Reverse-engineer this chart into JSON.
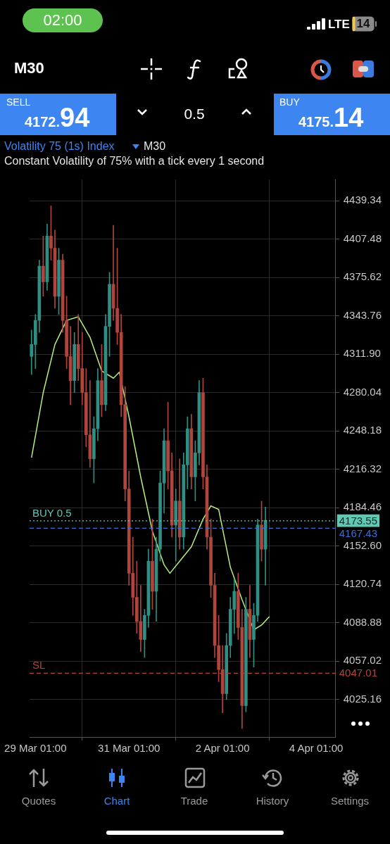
{
  "chart_data": {
    "type": "candlestick",
    "title": "Volatility 75 (1s) Index",
    "subtitle": "Constant Volatility of 75% with a tick every 1 second",
    "annotations": [
      "02:00",
      "LTE",
      "14",
      "M30",
      "SELL",
      "4172.94",
      "0.5",
      "BUY",
      "4175.14",
      "M30",
      "Quotes",
      "Chart",
      "Trade",
      "History",
      "Settings",
      "4173.55",
      "4167.43",
      "4047.01"
    ],
    "x": [
      "--03-28T23:00",
      "--03-29T01:00",
      "--03-29T03:00",
      "--03-29T05:00",
      "--03-29T07:00",
      "--03-29T09:00",
      "--03-29T11:00",
      "--03-29T13:00",
      "--03-29T15:00",
      "--03-29T17:00",
      "--03-29T19:00",
      "--03-29T21:00",
      "--03-29T23:00",
      "--03-30T01:00",
      "--03-30T03:00",
      "--03-30T05:00",
      "--03-30T07:00",
      "--03-30T09:00",
      "--03-30T11:00",
      "--03-30T13:00",
      "--03-30T15:00",
      "--03-30T17:00",
      "--03-30T19:00",
      "--03-30T21:00",
      "--03-30T23:00",
      "--03-31T01:00",
      "--03-31T03:00",
      "--03-31T05:00",
      "--03-31T07:00",
      "--03-31T09:00",
      "--03-31T11:00",
      "--03-31T13:00",
      "--03-31T15:00",
      "--03-31T17:00",
      "--03-31T19:00",
      "--03-31T21:00",
      "--03-31T23:00",
      "--04-01T01:00",
      "--04-01T03:00",
      "--04-01T05:00",
      "--04-01T07:00",
      "--04-01T09:00",
      "--04-01T11:00",
      "--04-01T13:00",
      "--04-01T15:00",
      "--04-01T17:00",
      "--04-01T19:00",
      "--04-01T21:00",
      "--04-01T23:00",
      "--04-02T01:00",
      "--04-02T03:00",
      "--04-02T05:00",
      "--04-02T07:00",
      "--04-02T09:00",
      "--04-02T11:00",
      "--04-02T13:00",
      "--04-02T15:00",
      "--04-02T17:00",
      "--04-02T19:00",
      "--04-02T21:00",
      "--04-02T23:00"
    ],
    "ohlc": [
      [
        4310,
        4332,
        4295,
        4320
      ],
      [
        4320,
        4345,
        4300,
        4340
      ],
      [
        4340,
        4390,
        4330,
        4385
      ],
      [
        4385,
        4410,
        4360,
        4372
      ],
      [
        4372,
        4420,
        4365,
        4410
      ],
      [
        4410,
        4435,
        4390,
        4400
      ],
      [
        4400,
        4415,
        4350,
        4360
      ],
      [
        4360,
        4400,
        4345,
        4390
      ],
      [
        4390,
        4395,
        4330,
        4340
      ],
      [
        4340,
        4360,
        4300,
        4310
      ],
      [
        4310,
        4335,
        4270,
        4290
      ],
      [
        4290,
        4330,
        4280,
        4320
      ],
      [
        4320,
        4345,
        4290,
        4300
      ],
      [
        4300,
        4330,
        4270,
        4280
      ],
      [
        4280,
        4300,
        4235,
        4245
      ],
      [
        4245,
        4290,
        4218,
        4225
      ],
      [
        4225,
        4260,
        4205,
        4250
      ],
      [
        4250,
        4300,
        4240,
        4290
      ],
      [
        4290,
        4320,
        4260,
        4270
      ],
      [
        4270,
        4345,
        4265,
        4335
      ],
      [
        4335,
        4380,
        4310,
        4370
      ],
      [
        4370,
        4419,
        4340,
        4350
      ],
      [
        4350,
        4400,
        4320,
        4330
      ],
      [
        4330,
        4345,
        4260,
        4270
      ],
      [
        4270,
        4285,
        4190,
        4200
      ],
      [
        4200,
        4215,
        4120,
        4130
      ],
      [
        4130,
        4160,
        4095,
        4110
      ],
      [
        4110,
        4140,
        4080,
        4090
      ],
      [
        4090,
        4120,
        4065,
        4075
      ],
      [
        4075,
        4100,
        4060,
        4095
      ],
      [
        4095,
        4150,
        4085,
        4140
      ],
      [
        4140,
        4175,
        4100,
        4115
      ],
      [
        4115,
        4160,
        4090,
        4150
      ],
      [
        4150,
        4215,
        4140,
        4205
      ],
      [
        4205,
        4250,
        4180,
        4240
      ],
      [
        4240,
        4272,
        4200,
        4215
      ],
      [
        4215,
        4230,
        4160,
        4170
      ],
      [
        4170,
        4200,
        4140,
        4190
      ],
      [
        4190,
        4225,
        4150,
        4160
      ],
      [
        4160,
        4230,
        4150,
        4220
      ],
      [
        4220,
        4260,
        4200,
        4250
      ],
      [
        4250,
        4262,
        4200,
        4210
      ],
      [
        4210,
        4240,
        4190,
        4230
      ],
      [
        4230,
        4290,
        4220,
        4280
      ],
      [
        4280,
        4292,
        4200,
        4210
      ],
      [
        4210,
        4220,
        4150,
        4160
      ],
      [
        4160,
        4175,
        4110,
        4120
      ],
      [
        4120,
        4130,
        4060,
        4070
      ],
      [
        4070,
        4095,
        4040,
        4050
      ],
      [
        4050,
        4070,
        4014,
        4030
      ],
      [
        4030,
        4080,
        4025,
        4070
      ],
      [
        4070,
        4110,
        4060,
        4100
      ],
      [
        4100,
        4125,
        4080,
        4115
      ],
      [
        4115,
        4130,
        4075,
        4085
      ],
      [
        4085,
        4100,
        4001,
        4020
      ],
      [
        4020,
        4110,
        4015,
        4100
      ],
      [
        4100,
        4120,
        4060,
        4075
      ],
      [
        4075,
        4105,
        4052,
        4095
      ],
      [
        4095,
        4175,
        4090,
        4170
      ],
      [
        4170,
        4190,
        4140,
        4150
      ],
      [
        4150,
        4185,
        4120,
        4174
      ]
    ],
    "colors": [
      "#2f8f83",
      "#2f8f83",
      "#2f8f83",
      "#b0453d",
      "#2f8f83",
      "#b0453d",
      "#b0453d",
      "#2f8f83",
      "#b0453d",
      "#b0453d",
      "#b0453d",
      "#2f8f83",
      "#b0453d",
      "#b0453d",
      "#b0453d",
      "#b0453d",
      "#2f8f83",
      "#2f8f83",
      "#b0453d",
      "#2f8f83",
      "#2f8f83",
      "#b0453d",
      "#b0453d",
      "#b0453d",
      "#b0453d",
      "#b0453d",
      "#b0453d",
      "#b0453d",
      "#b0453d",
      "#2f8f83",
      "#2f8f83",
      "#b0453d",
      "#2f8f83",
      "#2f8f83",
      "#2f8f83",
      "#b0453d",
      "#b0453d",
      "#2f8f83",
      "#b0453d",
      "#2f8f83",
      "#2f8f83",
      "#b0453d",
      "#2f8f83",
      "#2f8f83",
      "#b0453d",
      "#b0453d",
      "#b0453d",
      "#b0453d",
      "#b0453d",
      "#b0453d",
      "#2f8f83",
      "#2f8f83",
      "#2f8f83",
      "#b0453d",
      "#b0453d",
      "#2f8f83",
      "#b0453d",
      "#2f8f83",
      "#2f8f83",
      "#b0453d",
      "#2f8f83"
    ],
    "series": [
      {
        "type": "line",
        "color": "#b5f07a",
        "x": [
          "--03-28T23:00",
          "--03-29T05:00",
          "--03-29T11:00",
          "--03-29T17:00",
          "--03-29T23:00",
          "--03-30T05:00",
          "--03-30T11:00",
          "--03-30T17:00",
          "--03-30T20:00",
          "--03-31T01:00",
          "--03-31T07:00",
          "--03-31T13:00",
          "--03-31T19:00",
          "--03-31T22:00",
          "--04-01T03:00",
          "--04-01T09:00",
          "--04-01T15:00",
          "--04-01T19:00",
          "--04-01T23:00",
          "--04-02T05:00",
          "--04-02T11:00",
          "--04-02T17:00",
          "--04-02T21:00",
          "--04-03T01:00"
        ],
        "values": [
          4226,
          4280,
          4320,
          4340,
          4343,
          4326,
          4298,
          4292,
          4297,
          4260,
          4210,
          4165,
          4137,
          4130,
          4140,
          4152,
          4175,
          4186,
          4183,
          4135,
          4108,
          4083,
          4087,
          4094
        ]
      }
    ],
    "xlim": [
      "--03-28T22:00",
      "--04-04T11:00"
    ],
    "xticks": [
      {
        "value": "--03-29T01:00",
        "label": "29 Mar 01:00"
      },
      {
        "value": "--03-31T01:00",
        "label": "31 Mar 01:00"
      },
      {
        "value": "--04-02T01:00",
        "label": "2 Apr 01:00"
      },
      {
        "value": "--04-04T01:00",
        "label": "4 Apr 01:00"
      }
    ],
    "ylim": [
      3994,
      4457
    ],
    "yticks": [
      4439.34,
      4407.48,
      4375.62,
      4343.76,
      {
        "value": 4311.9,
        "label": "4311.90"
      },
      4280.04,
      4248.18,
      4216.32,
      4184.46,
      {
        "value": 4152.6,
        "label": "4152.60"
      },
      4120.74,
      4088.88,
      4057.02,
      4025.16
    ],
    "grid": true,
    "ref_lines": [
      {
        "axis": "y",
        "value": 4173.55,
        "label": "BUY 0.5",
        "color": "#5fc9b4",
        "line_style": "dotted"
      },
      {
        "axis": "y",
        "value": 4167.43,
        "color": "#3d6fd0",
        "line_style": "dashed"
      },
      {
        "axis": "y",
        "value": 4047.01,
        "label": "SL",
        "color": "#b0453d",
        "line_style": "dashed"
      }
    ]
  }
}
